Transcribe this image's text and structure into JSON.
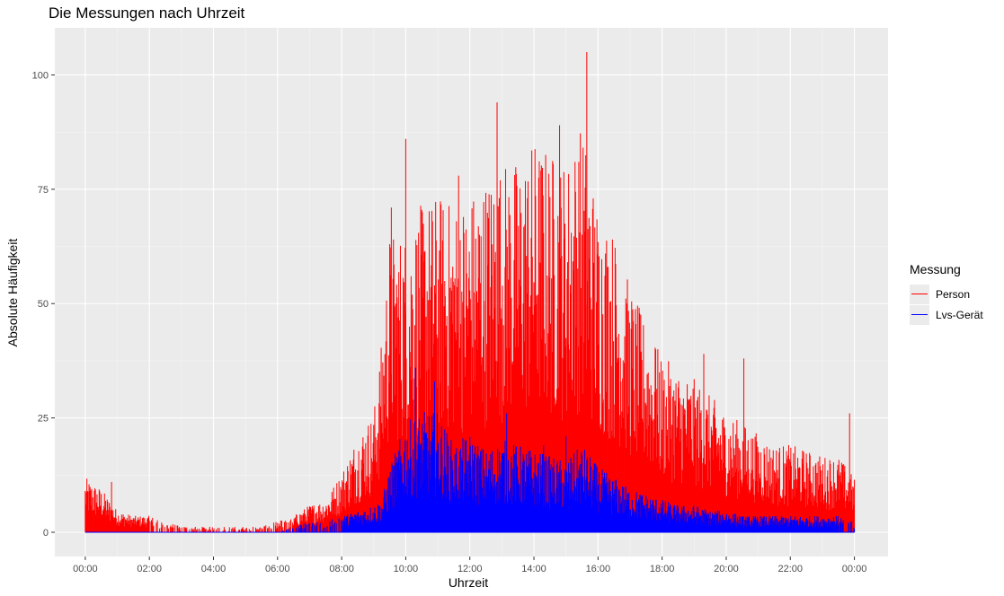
{
  "chart_data": {
    "type": "bar",
    "title": "Die Messungen nach Uhrzeit",
    "xlabel": "Uhrzeit",
    "ylabel": "Absolute Häufigkeit",
    "x_ticks": [
      "00:00",
      "02:00",
      "04:00",
      "06:00",
      "08:00",
      "10:00",
      "12:00",
      "14:00",
      "16:00",
      "18:00",
      "20:00",
      "22:00",
      "00:00"
    ],
    "y_ticks": [
      0,
      25,
      50,
      75,
      100
    ],
    "xlim_hours": [
      -0.95,
      25.05
    ],
    "ylim": [
      -5.3,
      110.3
    ],
    "grid": true,
    "legend": {
      "title": "Messung",
      "position": "right",
      "items": [
        {
          "name": "Person",
          "color": "#ff0000"
        },
        {
          "name": "Lvs-Gerät",
          "color": "#0000ff"
        }
      ]
    },
    "x_hours": [
      0,
      0.5,
      1,
      1.5,
      2,
      2.5,
      3,
      3.5,
      4,
      4.5,
      5,
      5.5,
      6,
      6.5,
      7,
      7.5,
      8,
      8.5,
      9,
      9.25,
      9.5,
      10,
      10.5,
      11,
      11.5,
      12,
      12.5,
      13,
      13.5,
      14,
      14.5,
      15,
      15.5,
      16,
      16.5,
      17,
      17.5,
      18,
      18.5,
      19,
      19.5,
      20,
      20.5,
      21,
      21.5,
      22,
      22.5,
      23,
      23.5,
      24
    ],
    "series": [
      {
        "name": "Person",
        "color": "#ff0000",
        "values": [
          10,
          8,
          4,
          3,
          3,
          2,
          1,
          1,
          1,
          1,
          1,
          1,
          2,
          3,
          5,
          6,
          11,
          18,
          22,
          35,
          55,
          55,
          60,
          62,
          60,
          62,
          65,
          68,
          68,
          72,
          70,
          68,
          75,
          60,
          55,
          45,
          38,
          32,
          30,
          28,
          25,
          22,
          20,
          18,
          16,
          16,
          15,
          14,
          14,
          10
        ],
        "spikes": [
          [
            0.82,
            11
          ],
          [
            9.55,
            71
          ],
          [
            10.0,
            86
          ],
          [
            11.65,
            78
          ],
          [
            12.85,
            94
          ],
          [
            14.8,
            89
          ],
          [
            15.65,
            105
          ],
          [
            17.8,
            40
          ],
          [
            19.3,
            39
          ],
          [
            20.55,
            38
          ],
          [
            23.85,
            26
          ]
        ]
      },
      {
        "name": "Lvs-Gerät",
        "color": "#0000ff",
        "values": [
          0,
          0,
          0,
          0,
          0,
          0,
          0,
          0,
          0,
          0,
          0,
          0,
          0,
          1,
          2,
          2,
          3,
          4,
          5,
          6,
          12,
          20,
          22,
          22,
          16,
          18,
          15,
          17,
          16,
          15,
          14,
          13,
          16,
          12,
          10,
          8,
          7,
          6,
          5,
          5,
          4,
          4,
          3,
          3,
          3,
          3,
          3,
          3,
          3,
          2
        ],
        "spikes": [
          [
            10.3,
            36
          ],
          [
            10.9,
            33
          ],
          [
            13.15,
            26
          ],
          [
            14.3,
            19
          ],
          [
            15.0,
            21
          ]
        ]
      }
    ]
  }
}
